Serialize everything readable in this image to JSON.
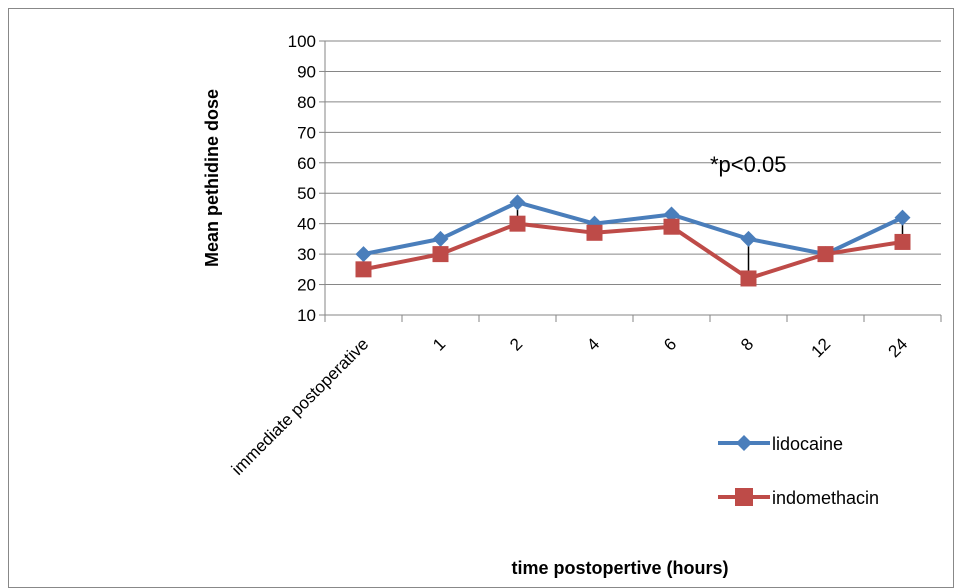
{
  "chart_data": {
    "type": "line",
    "title": "",
    "xlabel": "time postopertive (hours)",
    "ylabel": "Mean pethidine dose",
    "categories": [
      "immediate postoperative",
      "1",
      "2",
      "4",
      "6",
      "8",
      "12",
      "24"
    ],
    "ylim": [
      10,
      100
    ],
    "yticks": [
      10,
      20,
      30,
      40,
      50,
      60,
      70,
      80,
      90,
      100
    ],
    "grid": true,
    "legend_position": "right",
    "annotation": "*p<0.05",
    "series": [
      {
        "name": "lidocaine",
        "values": [
          30,
          35,
          47,
          40,
          43,
          35,
          30,
          42
        ],
        "color": "#4a7ebb",
        "marker": "diamond"
      },
      {
        "name": "indomethacin",
        "values": [
          25,
          30,
          40,
          37,
          39,
          22,
          30,
          34
        ],
        "color": "#be4b48",
        "marker": "square"
      }
    ]
  }
}
